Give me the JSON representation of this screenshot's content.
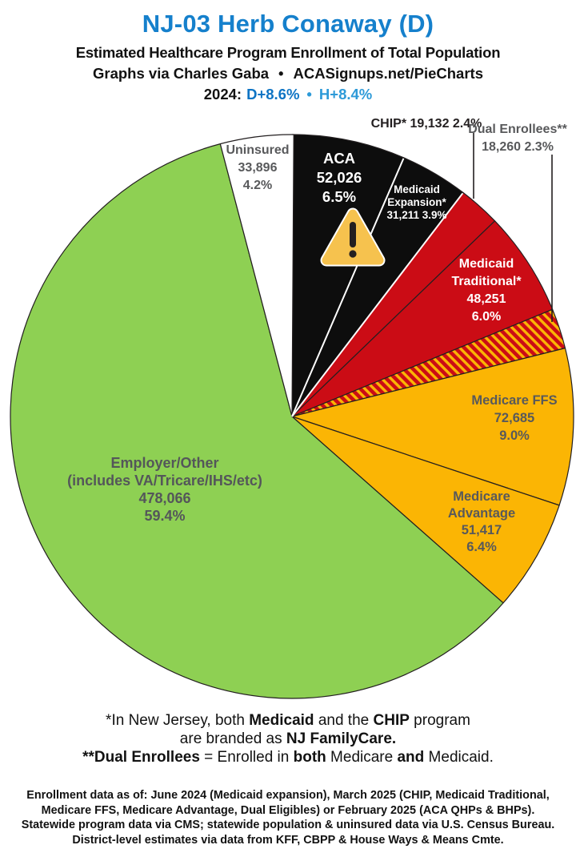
{
  "header": {
    "title": "NJ-03 Herb Conaway (D)",
    "title_color": "#1580cc",
    "subtitle": "Estimated Healthcare Program Enrollment of Total Population",
    "credit": "Graphs via Charles Gaba",
    "credit_separator": "•",
    "site": "ACASignups.net/PieCharts",
    "partisan": {
      "year_label": "2024:",
      "d_lean": "D+8.6%",
      "d_color": "#0e74c4",
      "separator": "•",
      "h_lean": "H+8.4%",
      "h_color": "#2d9ad8"
    }
  },
  "chart_data": {
    "type": "pie",
    "title": "Estimated Healthcare Program Enrollment of Total Population",
    "district": "NJ-03",
    "representative": "Herb Conaway (D)",
    "start_angle_deg": 0,
    "direction": "clockwise",
    "legend_position": "labels-on-slices",
    "white_separators_pct": [
      6.5,
      10.4
    ],
    "slices": [
      {
        "label": "ACA",
        "value": 52026,
        "pct": 6.5,
        "color": "#0d0d0d"
      },
      {
        "label": "Medicaid Expansion*",
        "value": 31211,
        "pct": 3.9,
        "color": "#0d0d0d"
      },
      {
        "label": "CHIP*",
        "value": 19132,
        "pct": 2.4,
        "color": "#cb0c15"
      },
      {
        "label": "Medicaid Traditional*",
        "value": 48251,
        "pct": 6.0,
        "color": "#cb0c15"
      },
      {
        "label": "Dual Enrollees**",
        "value": 18260,
        "pct": 2.3,
        "color": "hatch-red-gold"
      },
      {
        "label": "Medicare FFS",
        "value": 72685,
        "pct": 9.0,
        "color": "#fbb504"
      },
      {
        "label": "Medicare Advantage",
        "value": 51417,
        "pct": 6.4,
        "color": "#fbb504"
      },
      {
        "label": "Employer/Other (includes VA/Tricare/IHS/etc)",
        "value": 478066,
        "pct": 59.4,
        "color": "#8ed053"
      },
      {
        "label": "Uninsured",
        "value": 33896,
        "pct": 4.2,
        "color": "#ffffff"
      }
    ]
  },
  "pie_labels": {
    "uninsured": {
      "name": "Uninsured",
      "value": "33,896",
      "pct": "4.2%"
    },
    "aca": {
      "name": "ACA",
      "value": "52,026",
      "pct": "6.5%"
    },
    "expansion": {
      "name1": "Medicaid",
      "name2": "Expansion*",
      "stats": "31,211 3.9%"
    },
    "chip": {
      "text": "CHIP* 19,132 2.4%"
    },
    "dual": {
      "name": "Dual Enrollees**",
      "stats": "18,260 2.3%"
    },
    "traditional": {
      "name1": "Medicaid",
      "name2": "Traditional*",
      "value": "48,251",
      "pct": "6.0%"
    },
    "ffs": {
      "name": "Medicare FFS",
      "value": "72,685",
      "pct": "9.0%"
    },
    "advantage": {
      "name1": "Medicare",
      "name2": "Advantage",
      "value": "51,417",
      "pct": "6.4%"
    },
    "employer": {
      "name1": "Employer/Other",
      "name2": "(includes VA/Tricare/IHS/etc)",
      "value": "478,066",
      "pct": "59.4%"
    }
  },
  "warning_icon": {
    "meaning": "warning-triangle",
    "fill": "#f6c24e"
  },
  "footnote_runs": [
    [
      {
        "t": "*In New Jersey, both ",
        "b": false
      },
      {
        "t": "Medicaid",
        "b": true
      },
      {
        "t": " and the ",
        "b": false
      },
      {
        "t": "CHIP",
        "b": true
      },
      {
        "t": " program",
        "b": false
      }
    ],
    [
      {
        "t": "are branded as ",
        "b": false
      },
      {
        "t": "NJ FamilyCare.",
        "b": true
      }
    ],
    [
      {
        "t": "**Dual Enrollees",
        "b": true
      },
      {
        "t": " = Enrolled in ",
        "b": false
      },
      {
        "t": "both",
        "b": true
      },
      {
        "t": " Medicare ",
        "b": false
      },
      {
        "t": "and",
        "b": true
      },
      {
        "t": " Medicaid.",
        "b": false
      }
    ]
  ],
  "source_lines": [
    "Enrollment data as of: June 2024 (Medicaid expansion), March 2025 (CHIP, Medicaid Traditional,",
    "Medicare FFS, Medicare Advantage, Dual Eligibles) or February 2025 (ACA QHPs & BHPs).",
    "Statewide program data via CMS; statewide population & uninsured data via U.S. Census Bureau.",
    "District-level estimates via data from KFF, CBPP & House Ways & Means Cmte."
  ]
}
